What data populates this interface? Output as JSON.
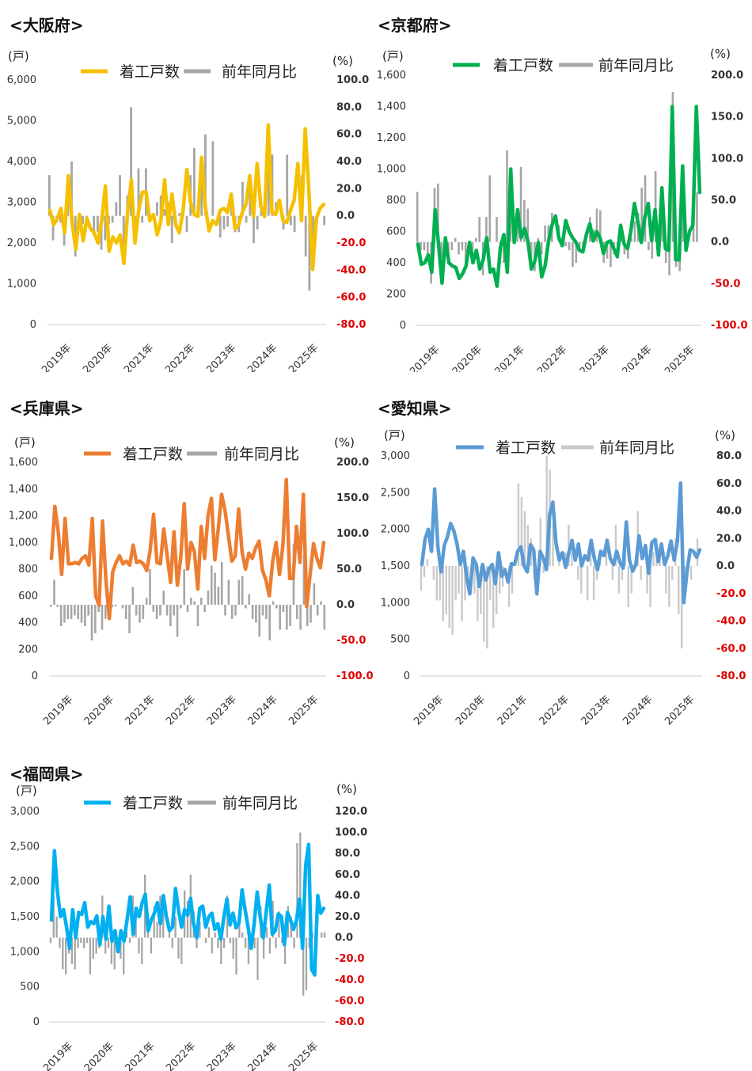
{
  "chart_data": [
    {
      "type": "bar+line",
      "title": "<大阪府>",
      "left_unit": "(戸)",
      "right_unit": "(%)",
      "legend": [
        "着工戸数",
        "前年同月比"
      ],
      "line_color": "#F5C000",
      "bar_color": "#A6A6A6",
      "left_axis": {
        "ticks": [
          "0",
          "1,000",
          "2,000",
          "3,000",
          "4,000",
          "5,000",
          "6,000"
        ],
        "min": 0,
        "max": 6000
      },
      "right_axis": {
        "ticks": [
          "-80.0",
          "-60.0",
          "-40.0",
          "-20.0",
          "0.0",
          "20.0",
          "40.0",
          "60.0",
          "80.0",
          "100.0"
        ],
        "min": -80,
        "max": 100,
        "negative_color": "#E00000"
      },
      "x_ticks": [
        "2019年",
        "2020年",
        "2021年",
        "2022年",
        "2023年",
        "2024年",
        "2025年"
      ],
      "units": [
        2800,
        2450,
        2600,
        2850,
        2250,
        3650,
        2500,
        1850,
        2700,
        2050,
        2600,
        2350,
        2250,
        2000,
        2550,
        3400,
        1800,
        2150,
        2000,
        2200,
        1500,
        2750,
        3550,
        2000,
        2800,
        3250,
        3250,
        2550,
        2700,
        2200,
        2550,
        3550,
        2450,
        3200,
        2450,
        2250,
        2800,
        3800,
        3000,
        2700,
        2650,
        4100,
        2900,
        2300,
        2550,
        2450,
        2800,
        2850,
        2750,
        3200,
        2350,
        2450,
        2750,
        2950,
        3650,
        2650,
        3950,
        2900,
        2650,
        4900,
        2750,
        2700,
        3050,
        2550,
        2500,
        2800,
        3050,
        3950,
        2550,
        4800,
        3250,
        1350,
        2600,
        2850,
        2950
      ],
      "yoy": [
        30,
        -18,
        -5,
        -5,
        -22,
        20,
        40,
        -30,
        -10,
        -6,
        -5,
        0,
        -15,
        -12,
        -25,
        -18,
        -6,
        -5,
        10,
        30,
        -35,
        15,
        80,
        -5,
        35,
        -5,
        35,
        0,
        0,
        10,
        15,
        5,
        10,
        -20,
        0,
        2,
        5,
        -12,
        30,
        50,
        0,
        35,
        60,
        0,
        55,
        0,
        -16,
        -10,
        -8,
        10,
        -12,
        -12,
        25,
        -5,
        30,
        -20,
        -10,
        5,
        0,
        40,
        45,
        10,
        0,
        -10,
        45,
        -7,
        -12,
        0,
        30,
        -30,
        -55,
        -20,
        -5,
        0,
        -7
      ]
    },
    {
      "type": "bar+line",
      "title": "<京都府>",
      "left_unit": "(戸)",
      "right_unit": "(%)",
      "legend": [
        "着工戸数",
        "前年同月比"
      ],
      "line_color": "#00B050",
      "bar_color": "#A6A6A6",
      "left_axis": {
        "ticks": [
          "0",
          "200",
          "400",
          "600",
          "800",
          "1,000",
          "1,200",
          "1,400",
          "1,600"
        ],
        "min": 0,
        "max": 1600
      },
      "right_axis": {
        "ticks": [
          "-100.0",
          "-50.0",
          "0.0",
          "50.0",
          "100.0",
          "150.0",
          "200.0"
        ],
        "min": -100,
        "max": 200,
        "negative_color": "#E00000"
      },
      "x_ticks": [
        "2019年",
        "2020年",
        "2021年",
        "2022年",
        "2023年",
        "2024年",
        "2025年"
      ],
      "units": [
        520,
        390,
        400,
        450,
        340,
        740,
        520,
        270,
        560,
        400,
        380,
        370,
        300,
        330,
        380,
        530,
        400,
        480,
        360,
        420,
        560,
        340,
        360,
        250,
        500,
        580,
        340,
        1000,
        530,
        740,
        560,
        620,
        540,
        360,
        410,
        530,
        310,
        380,
        540,
        640,
        700,
        560,
        510,
        670,
        600,
        560,
        530,
        480,
        470,
        580,
        650,
        540,
        600,
        560,
        460,
        530,
        540,
        490,
        440,
        640,
        520,
        490,
        610,
        780,
        660,
        530,
        690,
        780,
        540,
        740,
        450,
        880,
        490,
        480,
        1400,
        420,
        420,
        1020,
        480,
        600,
        640,
        1400,
        850
      ],
      "yoy": [
        60,
        -10,
        -10,
        -20,
        -50,
        65,
        70,
        -20,
        -20,
        -15,
        -10,
        5,
        -15,
        -10,
        -25,
        -5,
        -20,
        5,
        30,
        -40,
        30,
        80,
        0,
        30,
        -5,
        -25,
        110,
        80,
        0,
        30,
        90,
        50,
        40,
        -30,
        -35,
        5,
        -15,
        20,
        20,
        35,
        0,
        20,
        0,
        -5,
        -10,
        -30,
        -25,
        -12,
        -8,
        0,
        30,
        15,
        40,
        38,
        -25,
        -20,
        -30,
        -15,
        -20,
        10,
        -15,
        -20,
        5,
        25,
        35,
        65,
        80,
        -10,
        -20,
        85,
        -5,
        60,
        -25,
        -40,
        180,
        -30,
        -35,
        40,
        0,
        0,
        50,
        60,
        0
      ]
    },
    {
      "type": "bar+line",
      "title": "<兵庫県>",
      "left_unit": "(戸)",
      "right_unit": "(%)",
      "legend": [
        "着工戸数",
        "前年同月比"
      ],
      "line_color": "#ED7D31",
      "bar_color": "#A6A6A6",
      "left_axis": {
        "ticks": [
          "0",
          "200",
          "400",
          "600",
          "800",
          "1,000",
          "1,200",
          "1,400",
          "1,600"
        ],
        "min": 0,
        "max": 1600
      },
      "right_axis": {
        "ticks": [
          "-100.0",
          "-50.0",
          "0.0",
          "50.0",
          "100.0",
          "150.0",
          "200.0"
        ],
        "min": -100,
        "max": 200,
        "negative_color": "#E00000"
      },
      "x_ticks": [
        "2019年",
        "2020年",
        "2021年",
        "2022年",
        "2023年",
        "2024年",
        "2025年"
      ],
      "units": [
        880,
        1270,
        1080,
        760,
        1180,
        840,
        840,
        850,
        840,
        880,
        900,
        830,
        1180,
        600,
        530,
        1160,
        720,
        430,
        780,
        850,
        900,
        840,
        860,
        830,
        980,
        850,
        860,
        840,
        790,
        940,
        1210,
        850,
        840,
        1100,
        900,
        700,
        1080,
        680,
        890,
        1290,
        800,
        1000,
        930,
        650,
        1120,
        880,
        1200,
        1330,
        870,
        1100,
        1360,
        1240,
        1050,
        860,
        900,
        1250,
        930,
        800,
        920,
        880,
        960,
        1010,
        790,
        720,
        600,
        860,
        1000,
        760,
        980,
        1470,
        730,
        730,
        1120,
        850,
        1360,
        520,
        760,
        990,
        880,
        810,
        1000
      ],
      "yoy": [
        -3,
        35,
        -3,
        -30,
        -25,
        -20,
        -20,
        -15,
        -20,
        -25,
        -30,
        -15,
        -50,
        -40,
        -10,
        -35,
        -20,
        -5,
        -3,
        -2,
        0,
        -5,
        -20,
        -40,
        25,
        -15,
        -25,
        -20,
        10,
        50,
        -10,
        -20,
        -15,
        20,
        -15,
        -30,
        -15,
        -45,
        -5,
        50,
        -10,
        10,
        5,
        -30,
        10,
        -10,
        20,
        55,
        45,
        25,
        60,
        -15,
        35,
        -20,
        -15,
        35,
        40,
        -5,
        15,
        -20,
        -25,
        -45,
        -15,
        -20,
        -50,
        5,
        -5,
        -35,
        -10,
        -35,
        -30,
        85,
        -20,
        -35,
        70,
        -30,
        -25,
        30,
        -15,
        5,
        -35
      ]
    },
    {
      "type": "bar+line",
      "title": "<愛知県>",
      "left_unit": "(戸)",
      "right_unit": "(%)",
      "legend": [
        "着工戸数",
        "前年同月比"
      ],
      "line_color": "#5B9BD5",
      "bar_color": "#C9C9C9",
      "left_axis": {
        "ticks": [
          "0",
          "500",
          "1,000",
          "1,500",
          "2,000",
          "2,500",
          "3,000"
        ],
        "min": 0,
        "max": 3000
      },
      "right_axis": {
        "ticks": [
          "-80.0",
          "-60.0",
          "-40.0",
          "-20.0",
          "0.0",
          "20.0",
          "40.0",
          "60.0",
          "80.0"
        ],
        "min": -80,
        "max": 80,
        "negative_color": "#E00000"
      },
      "x_ticks": [
        "2019年",
        "2020年",
        "2021年",
        "2022年",
        "2023年",
        "2024年",
        "2025年"
      ],
      "units": [
        1520,
        1870,
        2000,
        1700,
        2550,
        1760,
        1420,
        1780,
        1900,
        2080,
        1980,
        1800,
        1520,
        1700,
        1350,
        1120,
        1610,
        1520,
        1220,
        1520,
        1310,
        1460,
        1520,
        1260,
        1680,
        1360,
        1450,
        1280,
        1530,
        1520,
        1700,
        1760,
        1500,
        1420,
        1790,
        1720,
        1120,
        1700,
        1610,
        1450,
        2200,
        2370,
        1810,
        1580,
        1680,
        1480,
        1680,
        1850,
        1580,
        1800,
        1500,
        1640,
        1580,
        1850,
        1600,
        1450,
        1700,
        1640,
        1850,
        1600,
        1520,
        1700,
        1550,
        1470,
        2100,
        1580,
        1430,
        1520,
        1910,
        1600,
        1780,
        1400,
        1820,
        1860,
        1560,
        1800,
        1520,
        1640,
        1840,
        1580,
        1840,
        2630,
        1000,
        1420,
        1720,
        1700,
        1620,
        1720
      ],
      "yoy": [
        -18,
        -8,
        5,
        0,
        -10,
        -25,
        -25,
        -40,
        -35,
        -45,
        -50,
        -25,
        -20,
        -40,
        -25,
        -15,
        -10,
        -20,
        -40,
        -35,
        -55,
        -60,
        -25,
        -45,
        -35,
        -20,
        -15,
        0,
        -30,
        -20,
        0,
        60,
        50,
        40,
        30,
        20,
        -10,
        0,
        35,
        -5,
        80,
        70,
        30,
        0,
        10,
        0,
        10,
        30,
        10,
        0,
        -10,
        -20,
        0,
        -25,
        10,
        -25,
        -10,
        10,
        0,
        20,
        0,
        -10,
        30,
        -20,
        -10,
        10,
        -30,
        -20,
        0,
        40,
        -10,
        0,
        -20,
        -30,
        10,
        20,
        15,
        0,
        -20,
        -30,
        -10,
        20,
        -35,
        -60,
        -10,
        5,
        -10,
        0,
        20,
        0
      ]
    },
    {
      "type": "bar+line",
      "title": "<福岡県>",
      "left_unit": "(戸)",
      "right_unit": "(%)",
      "legend": [
        "着工戸数",
        "前年同月比"
      ],
      "line_color": "#00B0F0",
      "bar_color": "#A6A6A6",
      "left_axis": {
        "ticks": [
          "0",
          "500",
          "1,000",
          "1,500",
          "2,000",
          "2,500",
          "3,000"
        ],
        "min": 0,
        "max": 3000
      },
      "right_axis": {
        "ticks": [
          "-80.0",
          "-60.0",
          "-40.0",
          "-20.0",
          "0.0",
          "20.0",
          "40.0",
          "60.0",
          "80.0",
          "100.0",
          "120.0"
        ],
        "min": -80,
        "max": 120,
        "negative_color": "#E00000"
      },
      "x_ticks": [
        "2019年",
        "2020年",
        "2021年",
        "2022年",
        "2023年",
        "2024年",
        "2025年"
      ],
      "units": [
        1450,
        2440,
        1850,
        1500,
        1600,
        1350,
        1050,
        1600,
        1200,
        1560,
        1530,
        1700,
        1350,
        1430,
        1400,
        1510,
        1100,
        1500,
        1180,
        1650,
        1150,
        1300,
        1000,
        1300,
        1150,
        1460,
        1780,
        1250,
        1620,
        1500,
        1700,
        1820,
        1300,
        1450,
        1550,
        1700,
        1400,
        1800,
        1500,
        1300,
        1350,
        1900,
        1600,
        1350,
        1600,
        1520,
        1760,
        1400,
        1200,
        1620,
        1650,
        1350,
        1500,
        1550,
        1320,
        1400,
        1180,
        1500,
        1750,
        1380,
        1550,
        1340,
        1410,
        1880,
        1600,
        1350,
        1050,
        1400,
        1850,
        1500,
        1200,
        1580,
        1950,
        1250,
        1300,
        1540,
        1500,
        1100,
        1560,
        1450,
        1320,
        1450,
        1750,
        1050,
        2230,
        2530,
        750,
        670,
        1800,
        1550,
        1620
      ],
      "yoy": [
        -5,
        40,
        20,
        -10,
        -30,
        -35,
        -15,
        -25,
        -30,
        -10,
        -5,
        -10,
        -5,
        -35,
        -20,
        -15,
        -10,
        40,
        -15,
        -10,
        -25,
        -30,
        -5,
        -20,
        -35,
        5,
        -5,
        40,
        20,
        -15,
        -25,
        60,
        20,
        -15,
        30,
        15,
        40,
        25,
        0,
        5,
        -10,
        20,
        -20,
        -25,
        45,
        35,
        60,
        25,
        -10,
        15,
        0,
        -5,
        10,
        -15,
        5,
        -10,
        -25,
        -10,
        40,
        -5,
        -20,
        -35,
        20,
        5,
        -10,
        -25,
        0,
        -10,
        -40,
        30,
        -20,
        10,
        -15,
        35,
        -10,
        25,
        -5,
        -25,
        30,
        20,
        -10,
        90,
        100,
        -55,
        -50,
        -10,
        5,
        5,
        0,
        5,
        5
      ]
    }
  ]
}
